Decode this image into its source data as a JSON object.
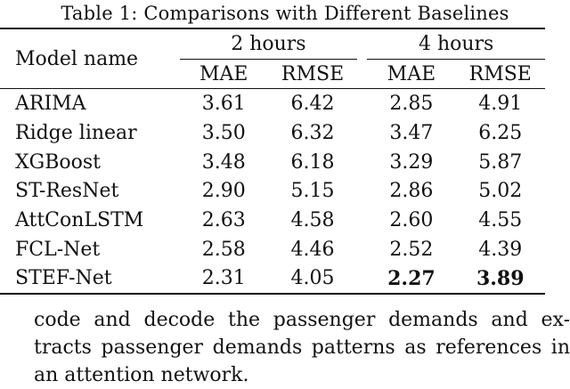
{
  "caption": "Table 1: Comparisons with Different Baselines",
  "table": {
    "model_header": "Model name",
    "groups": [
      "2 hours",
      "4 hours"
    ],
    "metrics": [
      "MAE",
      "RMSE",
      "MAE",
      "RMSE"
    ],
    "rows": [
      {
        "model": "ARIMA",
        "values": [
          "3.61",
          "6.42",
          "2.85",
          "4.91"
        ]
      },
      {
        "model": "Ridge linear",
        "values": [
          "3.50",
          "6.32",
          "3.47",
          "6.25"
        ]
      },
      {
        "model": "XGBoost",
        "values": [
          "3.48",
          "6.18",
          "3.29",
          "5.87"
        ]
      },
      {
        "model": "ST-ResNet",
        "values": [
          "2.90",
          "5.15",
          "2.86",
          "5.02"
        ]
      },
      {
        "model": "AttConLSTM",
        "values": [
          "2.63",
          "4.58",
          "2.60",
          "4.55"
        ]
      },
      {
        "model": "FCL-Net",
        "values": [
          "2.58",
          "4.46",
          "2.52",
          "4.39"
        ]
      },
      {
        "model": "STEF-Net",
        "values": [
          "2.31",
          "4.05",
          "2.27",
          "3.89"
        ]
      }
    ]
  },
  "paragraph": [
    "code and decode the passenger demands and ex-",
    "tracts passenger demands patterns as references in",
    "an attention network."
  ]
}
